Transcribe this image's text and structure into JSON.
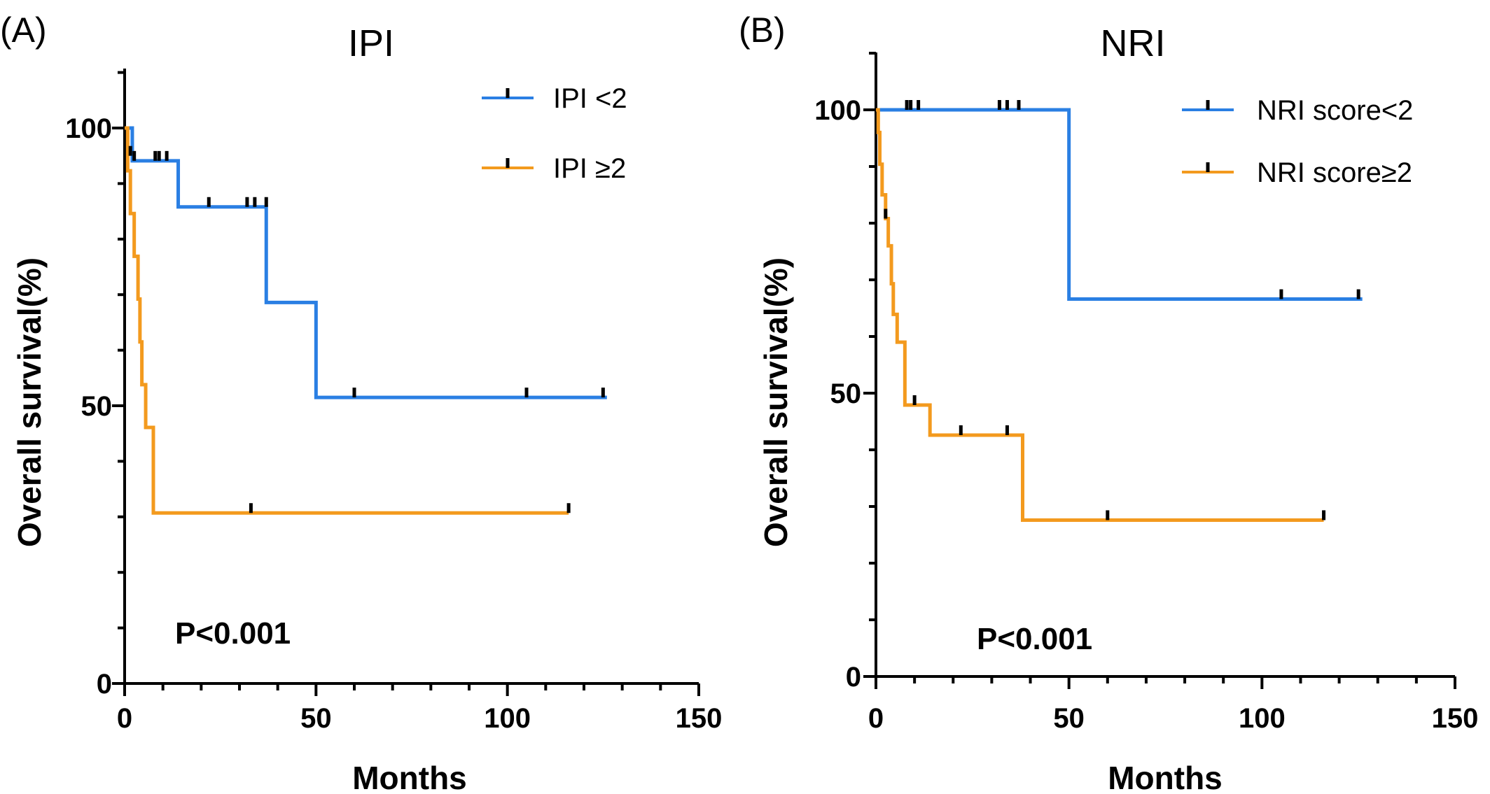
{
  "figure": {
    "panels": [
      "(A)",
      "(B)"
    ]
  },
  "chart_data": [
    {
      "type": "line",
      "subtype": "kaplan-meier",
      "panel_label": "(A)",
      "title": "IPI",
      "xlabel": "Months",
      "ylabel": "Overall survival(%)",
      "xlim": [
        0,
        150
      ],
      "ylim": [
        0,
        110
      ],
      "xticks": [
        0,
        50,
        100,
        150
      ],
      "yticks": [
        0,
        50,
        100
      ],
      "xtick_labels": [
        "0",
        "50",
        "100",
        "150"
      ],
      "ytick_labels": [
        "0",
        "50",
        "100"
      ],
      "annotation": "P<0.001",
      "legend_position": "top-right",
      "series": [
        {
          "name": "IPI <2",
          "color": "#2a7fe3",
          "steps": [
            [
              0,
              100
            ],
            [
              2,
              94.1
            ],
            [
              14,
              85.8
            ],
            [
              37,
              68.6
            ],
            [
              50,
              51.5
            ],
            [
              126,
              51.5
            ]
          ],
          "censors": [
            [
              2.5,
              94.1
            ],
            [
              8,
              94.1
            ],
            [
              9,
              94.1
            ],
            [
              11,
              94.1
            ],
            [
              22,
              85.8
            ],
            [
              32,
              85.8
            ],
            [
              34,
              85.8
            ],
            [
              37,
              85.8
            ],
            [
              60,
              51.5
            ],
            [
              105,
              51.5
            ],
            [
              125,
              51.5
            ]
          ]
        },
        {
          "name": "IPI  ≥2",
          "color": "#f39a1e",
          "steps": [
            [
              0,
              100
            ],
            [
              0.8,
              92.3
            ],
            [
              1.5,
              84.6
            ],
            [
              2.5,
              76.9
            ],
            [
              3.5,
              69.2
            ],
            [
              4,
              61.5
            ],
            [
              4.5,
              53.8
            ],
            [
              5.5,
              46.1
            ],
            [
              7.5,
              30.7
            ],
            [
              116,
              30.7
            ]
          ],
          "censors": [
            [
              1.5,
              95
            ],
            [
              33,
              30.7
            ],
            [
              116,
              30.7
            ]
          ]
        }
      ]
    },
    {
      "type": "line",
      "subtype": "kaplan-meier",
      "panel_label": "(B)",
      "title": "NRI",
      "xlabel": "Months",
      "ylabel": "Overall survival(%)",
      "xlim": [
        0,
        150
      ],
      "ylim": [
        0,
        110
      ],
      "xticks": [
        0,
        50,
        100,
        150
      ],
      "yticks": [
        0,
        50,
        100
      ],
      "xtick_labels": [
        "0",
        "50",
        "100",
        "150"
      ],
      "ytick_labels": [
        "0",
        "50",
        "100"
      ],
      "annotation": "P<0.001",
      "legend_position": "top-right",
      "series": [
        {
          "name": "NRI score<2",
          "color": "#2a7fe3",
          "steps": [
            [
              0,
              100
            ],
            [
              50,
              66.6
            ],
            [
              126,
              66.6
            ]
          ],
          "censors": [
            [
              8,
              100
            ],
            [
              9,
              100
            ],
            [
              11,
              100
            ],
            [
              32,
              100
            ],
            [
              34,
              100
            ],
            [
              37,
              100
            ],
            [
              105,
              66.6
            ],
            [
              125,
              66.6
            ]
          ]
        },
        {
          "name": "NRI score≥2",
          "color": "#f39a1e",
          "steps": [
            [
              0,
              100
            ],
            [
              0.6,
              96
            ],
            [
              1,
              90.4
            ],
            [
              1.6,
              85
            ],
            [
              2.5,
              80.8
            ],
            [
              3.2,
              76
            ],
            [
              4,
              69.3
            ],
            [
              4.5,
              63.9
            ],
            [
              5.5,
              59
            ],
            [
              7.5,
              47.9
            ],
            [
              14,
              42.6
            ],
            [
              38,
              27.6
            ],
            [
              116,
              27.6
            ]
          ],
          "censors": [
            [
              2.5,
              80.8
            ],
            [
              10,
              47.9
            ],
            [
              22,
              42.6
            ],
            [
              34,
              42.6
            ],
            [
              60,
              27.6
            ],
            [
              116,
              27.6
            ]
          ]
        }
      ]
    }
  ]
}
